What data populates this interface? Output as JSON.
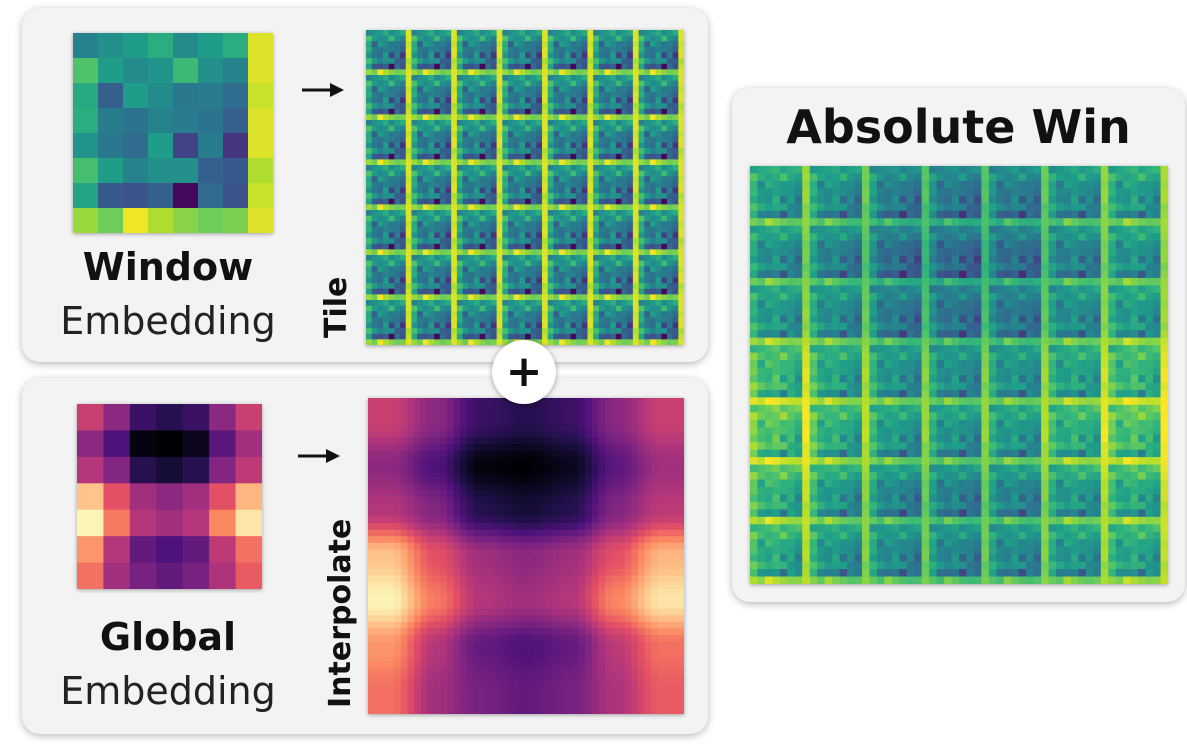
{
  "window_panel": {
    "label_bold": "Window",
    "label_light": "Embedding",
    "op_label": "Tile"
  },
  "global_panel": {
    "label_bold": "Global",
    "label_light": "Embedding",
    "op_label": "Interpolate"
  },
  "combine_symbol": "+",
  "result_panel": {
    "title": "Absolute Win"
  },
  "colors": {
    "panel_bg": "#f3f3f3",
    "arrow": "#111111"
  },
  "icons": [
    "arrow-right-icon",
    "plus-icon"
  ],
  "window_embedding_values": [
    [
      0.45,
      0.5,
      0.55,
      0.62,
      0.48,
      0.55,
      0.62,
      0.95
    ],
    [
      0.72,
      0.55,
      0.48,
      0.52,
      0.68,
      0.5,
      0.45,
      0.95
    ],
    [
      0.6,
      0.3,
      0.55,
      0.48,
      0.4,
      0.42,
      0.35,
      0.92
    ],
    [
      0.62,
      0.42,
      0.38,
      0.45,
      0.42,
      0.38,
      0.3,
      0.95
    ],
    [
      0.52,
      0.4,
      0.35,
      0.55,
      0.2,
      0.42,
      0.15,
      0.95
    ],
    [
      0.7,
      0.55,
      0.45,
      0.5,
      0.5,
      0.3,
      0.28,
      0.88
    ],
    [
      0.58,
      0.28,
      0.25,
      0.3,
      0.02,
      0.35,
      0.25,
      0.92
    ],
    [
      0.85,
      0.78,
      0.98,
      0.88,
      0.82,
      0.78,
      0.8,
      0.95
    ]
  ],
  "global_embedding_values": [
    [
      0.55,
      0.4,
      0.2,
      0.15,
      0.2,
      0.4,
      0.55
    ],
    [
      0.4,
      0.25,
      0.02,
      0.0,
      0.05,
      0.28,
      0.45
    ],
    [
      0.5,
      0.38,
      0.15,
      0.1,
      0.15,
      0.38,
      0.52
    ],
    [
      0.88,
      0.62,
      0.45,
      0.4,
      0.45,
      0.62,
      0.85
    ],
    [
      0.98,
      0.72,
      0.5,
      0.45,
      0.5,
      0.75,
      0.95
    ],
    [
      0.78,
      0.5,
      0.3,
      0.25,
      0.3,
      0.52,
      0.7
    ],
    [
      0.7,
      0.45,
      0.35,
      0.3,
      0.35,
      0.48,
      0.65
    ]
  ]
}
